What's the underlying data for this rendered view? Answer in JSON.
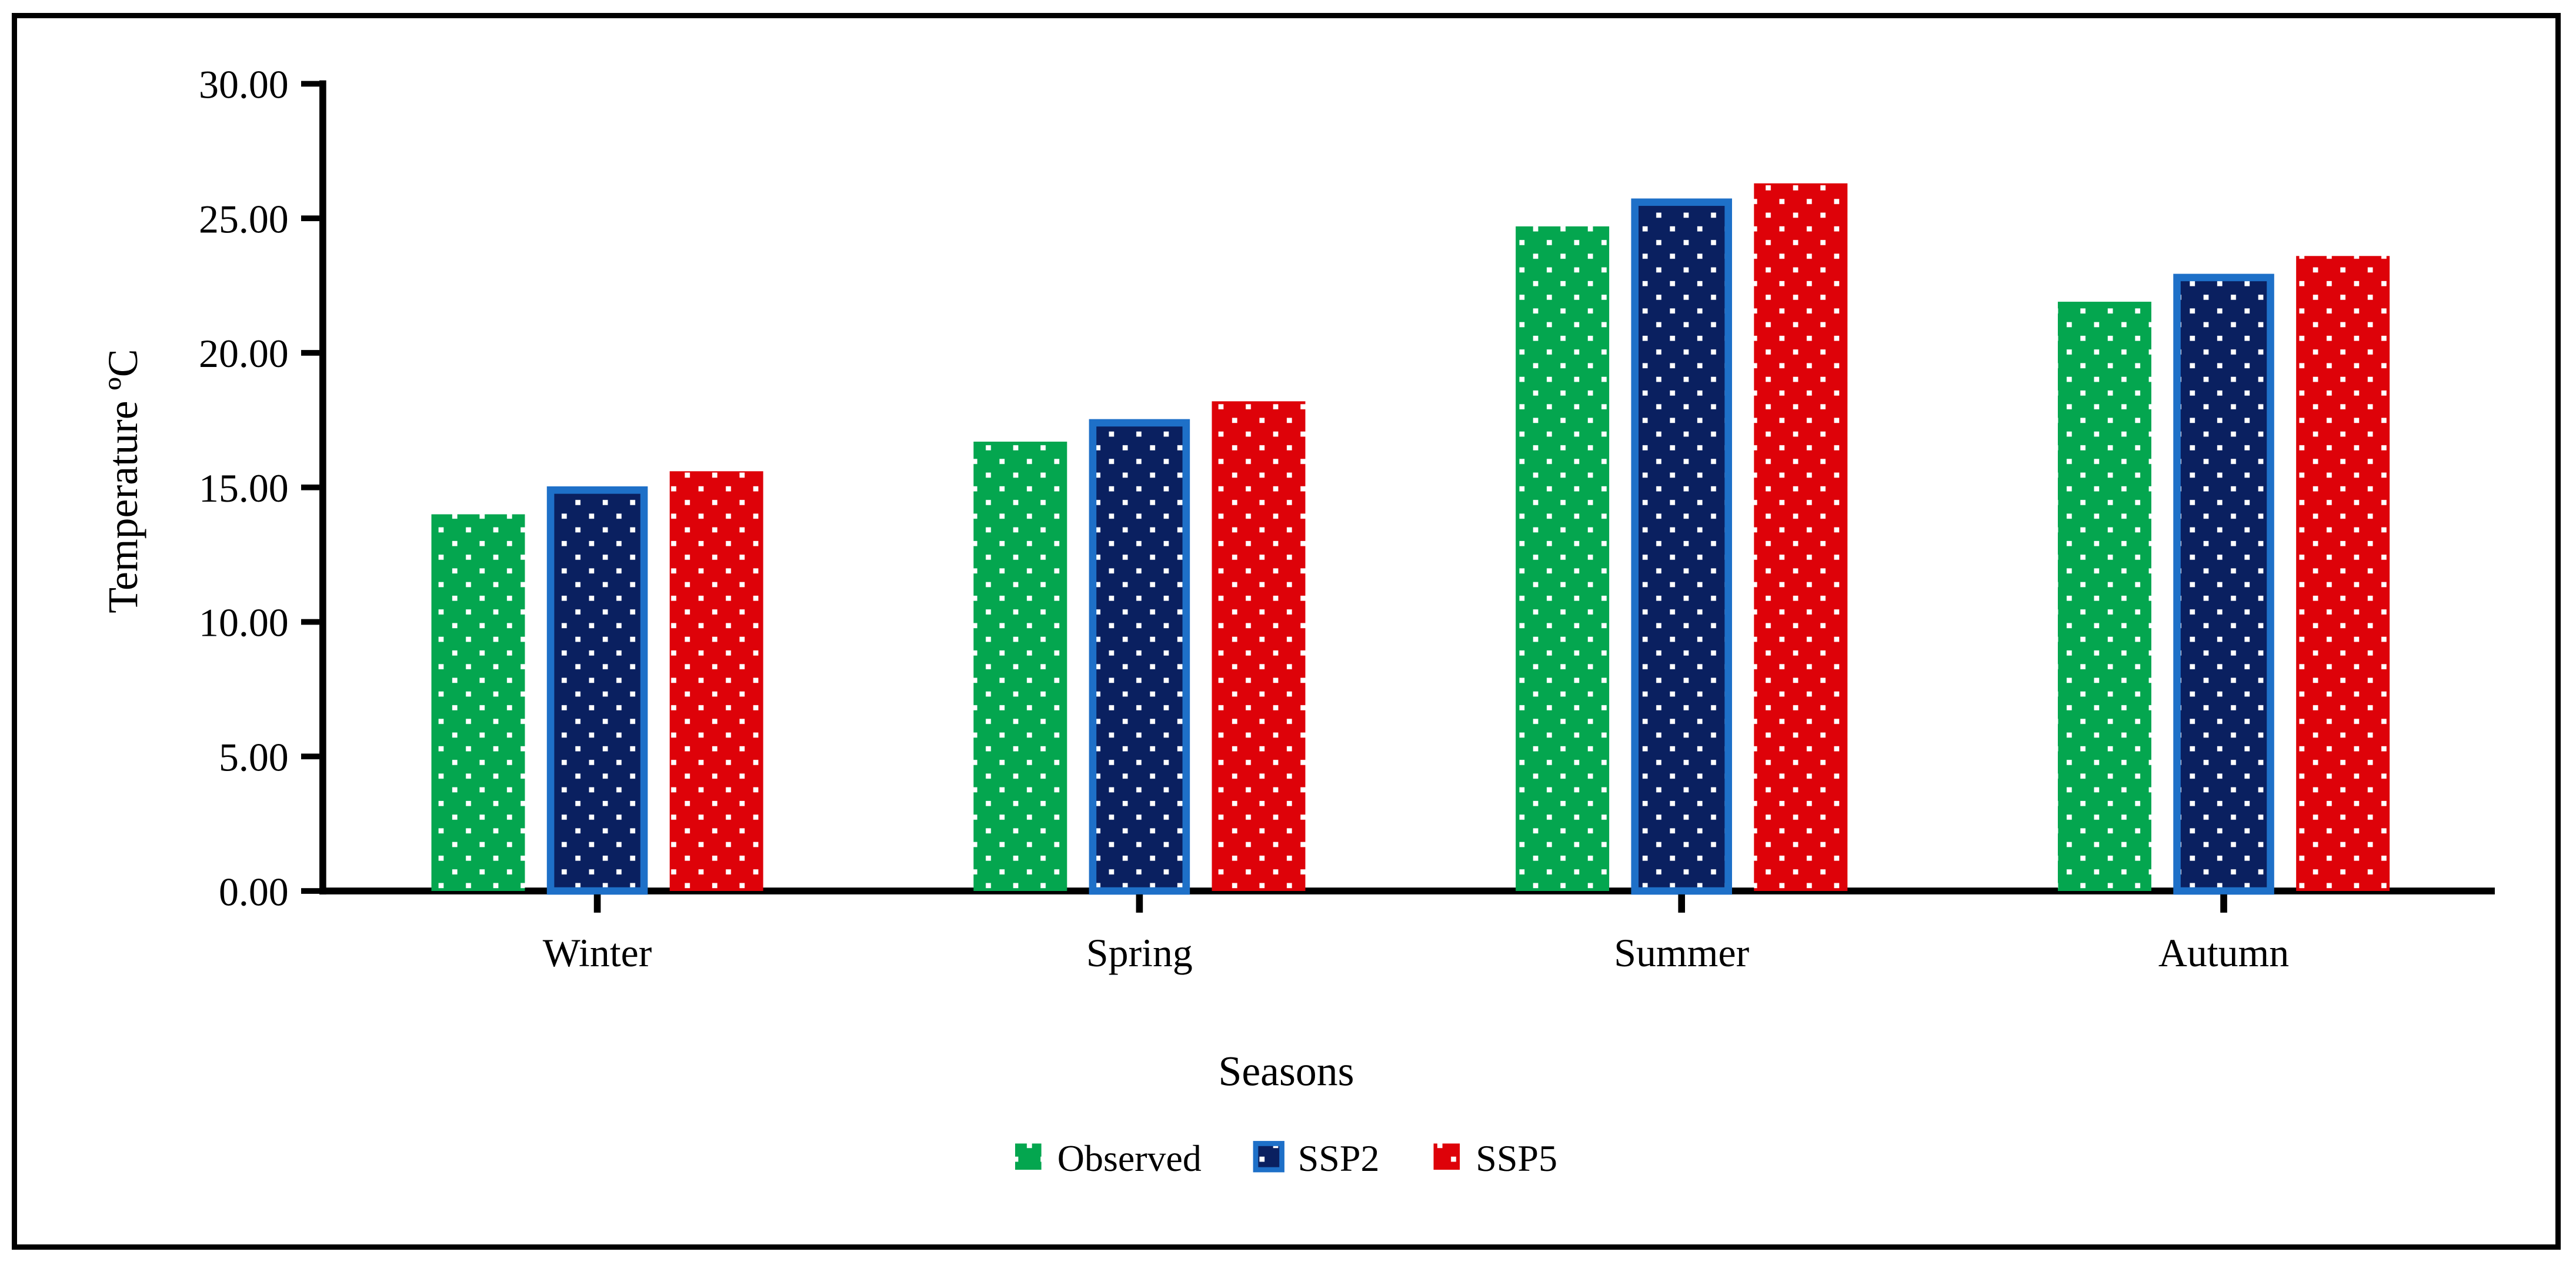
{
  "figure": {
    "background": "#ffffff",
    "frame_color": "#000000",
    "text_color": "#000000",
    "pattern": "white-square-dots"
  },
  "chart_data": {
    "type": "bar",
    "title": "",
    "xlabel": "Seasons",
    "ylabel": "Temperature ºC",
    "categories": [
      "Winter",
      "Spring",
      "Summer",
      "Autumn"
    ],
    "series": [
      {
        "name": "Observed",
        "color": "#04A64F",
        "values": [
          14.0,
          16.7,
          24.7,
          21.9
        ]
      },
      {
        "name": "SSP2",
        "color": "#0A2060",
        "border_color": "#1E70C8",
        "values": [
          14.9,
          17.4,
          25.6,
          22.8
        ]
      },
      {
        "name": "SSP5",
        "color": "#DE0209",
        "values": [
          15.6,
          18.2,
          26.3,
          23.6
        ]
      }
    ],
    "ylim": [
      0,
      30
    ],
    "ytick_step": 5,
    "ytick_labels": [
      "0.00",
      "5.00",
      "10.00",
      "15.00",
      "20.00",
      "25.00",
      "30.00"
    ],
    "grid": false,
    "legend_position": "bottom-center"
  }
}
